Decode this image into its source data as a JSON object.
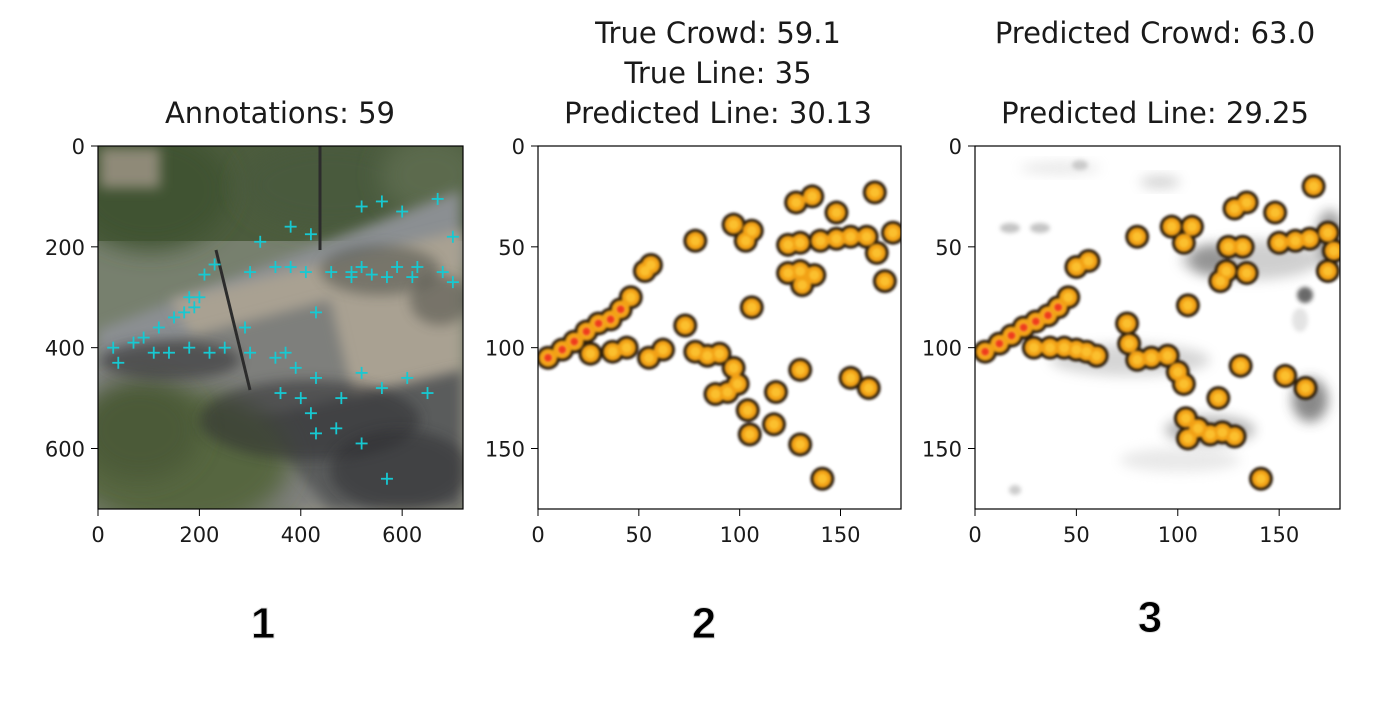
{
  "chart_data": [
    {
      "type": "scatter",
      "title": "Annotations: 59",
      "xlim": [
        0,
        720
      ],
      "ylim": [
        720,
        0
      ],
      "xticks": [
        0,
        200,
        400,
        600
      ],
      "yticks": [
        0,
        200,
        400,
        600
      ],
      "marker": "plus",
      "marker_color": "#17c9d2",
      "points": [
        [
          320,
          190
        ],
        [
          380,
          160
        ],
        [
          420,
          175
        ],
        [
          300,
          250
        ],
        [
          410,
          250
        ],
        [
          520,
          120
        ],
        [
          560,
          110
        ],
        [
          600,
          130
        ],
        [
          670,
          105
        ],
        [
          350,
          240
        ],
        [
          380,
          240
        ],
        [
          460,
          250
        ],
        [
          500,
          250
        ],
        [
          520,
          240
        ],
        [
          590,
          240
        ],
        [
          630,
          240
        ],
        [
          680,
          250
        ],
        [
          700,
          180
        ],
        [
          210,
          255
        ],
        [
          230,
          235
        ],
        [
          180,
          300
        ],
        [
          200,
          300
        ],
        [
          430,
          330
        ],
        [
          500,
          260
        ],
        [
          540,
          255
        ],
        [
          570,
          260
        ],
        [
          620,
          260
        ],
        [
          700,
          270
        ],
        [
          290,
          360
        ],
        [
          30,
          400
        ],
        [
          70,
          390
        ],
        [
          90,
          380
        ],
        [
          120,
          360
        ],
        [
          150,
          340
        ],
        [
          170,
          330
        ],
        [
          190,
          320
        ],
        [
          110,
          410
        ],
        [
          140,
          410
        ],
        [
          180,
          400
        ],
        [
          220,
          410
        ],
        [
          250,
          400
        ],
        [
          300,
          410
        ],
        [
          350,
          420
        ],
        [
          370,
          410
        ],
        [
          390,
          440
        ],
        [
          430,
          460
        ],
        [
          480,
          500
        ],
        [
          520,
          450
        ],
        [
          560,
          480
        ],
        [
          610,
          460
        ],
        [
          650,
          490
        ],
        [
          40,
          430
        ],
        [
          360,
          490
        ],
        [
          400,
          500
        ],
        [
          420,
          530
        ],
        [
          430,
          570
        ],
        [
          470,
          560
        ],
        [
          520,
          590
        ],
        [
          570,
          660
        ]
      ]
    },
    {
      "type": "heatmap",
      "title_lines": [
        "True Crowd: 59.1",
        "True Line: 35",
        "Predicted Line: 30.13"
      ],
      "xlim": [
        0,
        180
      ],
      "ylim": [
        180,
        0
      ],
      "xticks": [
        0,
        50,
        100,
        150
      ],
      "yticks": [
        0,
        50,
        100,
        150
      ],
      "colormap": "afmhot_r",
      "blobs": [
        [
          5,
          105
        ],
        [
          12,
          101
        ],
        [
          18,
          97
        ],
        [
          24,
          92
        ],
        [
          30,
          88
        ],
        [
          36,
          86
        ],
        [
          41,
          81
        ],
        [
          46,
          75
        ],
        [
          53,
          62
        ],
        [
          56,
          59
        ],
        [
          78,
          47
        ],
        [
          97,
          39
        ],
        [
          103,
          47
        ],
        [
          106,
          42
        ],
        [
          106,
          80
        ],
        [
          128,
          28
        ],
        [
          136,
          25
        ],
        [
          148,
          33
        ],
        [
          167,
          23
        ],
        [
          124,
          49
        ],
        [
          130,
          48
        ],
        [
          140,
          47
        ],
        [
          148,
          46
        ],
        [
          155,
          45
        ],
        [
          163,
          45
        ],
        [
          176,
          43
        ],
        [
          168,
          53
        ],
        [
          172,
          67
        ],
        [
          124,
          63
        ],
        [
          130,
          62
        ],
        [
          137,
          64
        ],
        [
          131,
          69
        ],
        [
          73,
          89
        ],
        [
          26,
          103
        ],
        [
          37,
          102
        ],
        [
          44,
          100
        ],
        [
          55,
          105
        ],
        [
          62,
          101
        ],
        [
          78,
          102
        ],
        [
          84,
          104
        ],
        [
          90,
          103
        ],
        [
          97,
          110
        ],
        [
          99,
          118
        ],
        [
          88,
          123
        ],
        [
          94,
          122
        ],
        [
          104,
          131
        ],
        [
          105,
          143
        ],
        [
          117,
          138
        ],
        [
          118,
          122
        ],
        [
          130,
          111
        ],
        [
          130,
          148
        ],
        [
          141,
          165
        ],
        [
          155,
          115
        ],
        [
          164,
          120
        ]
      ]
    },
    {
      "type": "heatmap",
      "title_lines": [
        "Predicted Crowd: 63.0",
        "",
        "Predicted Line: 29.25"
      ],
      "xlim": [
        0,
        180
      ],
      "ylim": [
        180,
        0
      ],
      "xticks": [
        0,
        50,
        100,
        150
      ],
      "yticks": [
        0,
        50,
        100,
        150
      ],
      "colormap": "afmhot_r",
      "blobs": [
        [
          5,
          102
        ],
        [
          12,
          98
        ],
        [
          18,
          94
        ],
        [
          24,
          90
        ],
        [
          30,
          87
        ],
        [
          36,
          84
        ],
        [
          41,
          80
        ],
        [
          46,
          75
        ],
        [
          50,
          60
        ],
        [
          56,
          57
        ],
        [
          80,
          45
        ],
        [
          97,
          40
        ],
        [
          103,
          48
        ],
        [
          107,
          40
        ],
        [
          105,
          79
        ],
        [
          128,
          31
        ],
        [
          134,
          28
        ],
        [
          148,
          33
        ],
        [
          167,
          20
        ],
        [
          125,
          50
        ],
        [
          132,
          50
        ],
        [
          150,
          48
        ],
        [
          158,
          47
        ],
        [
          165,
          46
        ],
        [
          174,
          43
        ],
        [
          177,
          52
        ],
        [
          174,
          62
        ],
        [
          124,
          62
        ],
        [
          121,
          67
        ],
        [
          134,
          63
        ],
        [
          75,
          88
        ],
        [
          76,
          98
        ],
        [
          80,
          106
        ],
        [
          87,
          105
        ],
        [
          95,
          104
        ],
        [
          100,
          112
        ],
        [
          103,
          118
        ],
        [
          60,
          104
        ],
        [
          55,
          102
        ],
        [
          50,
          101
        ],
        [
          44,
          100
        ],
        [
          37,
          100
        ],
        [
          29,
          100
        ],
        [
          104,
          135
        ],
        [
          110,
          140
        ],
        [
          116,
          143
        ],
        [
          122,
          142
        ],
        [
          128,
          144
        ],
        [
          105,
          145
        ],
        [
          120,
          125
        ],
        [
          131,
          109
        ],
        [
          141,
          165
        ],
        [
          153,
          114
        ],
        [
          163,
          120
        ]
      ]
    }
  ],
  "panel_labels": [
    "1",
    "2",
    "3"
  ]
}
